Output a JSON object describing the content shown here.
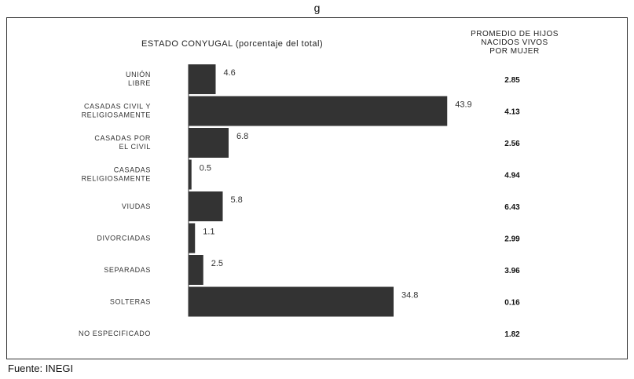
{
  "top_caption": "g",
  "source": "Fuente: INEGI",
  "chart_data": {
    "type": "bar",
    "orientation": "horizontal",
    "title": "ESTADO CONYUGAL (porcentaje del total)",
    "avg_header": [
      "PROMEDIO DE HIJOS",
      "NACIDOS VIVOS",
      "POR MUJER"
    ],
    "categories": [
      [
        "UNIÓN",
        "LIBRE"
      ],
      [
        "CASADAS CIVIL Y",
        "RELIGIOSAMENTE"
      ],
      [
        "CASADAS POR",
        "EL CIVIL"
      ],
      [
        "CASADAS",
        "RELIGIOSAMENTE"
      ],
      [
        "VIUDAS"
      ],
      [
        "DIVORCIADAS"
      ],
      [
        "SEPARADAS"
      ],
      [
        "SOLTERAS"
      ],
      [
        "NO ESPECIFICADO"
      ]
    ],
    "values": [
      4.6,
      43.9,
      6.8,
      0.5,
      5.8,
      1.1,
      2.5,
      34.8,
      null
    ],
    "value_labels": [
      "4.6",
      "43.9",
      "6.8",
      "0.5",
      "5.8",
      "1.1",
      "2.5",
      "34.8",
      ""
    ],
    "avg_children": [
      "2.85",
      "4.13",
      "2.56",
      "4.94",
      "6.43",
      "2.99",
      "3.96",
      "0.16",
      "1.82"
    ],
    "xlim": [
      0,
      50
    ],
    "bar_color": "#333333",
    "grid": false,
    "legend": "none"
  }
}
